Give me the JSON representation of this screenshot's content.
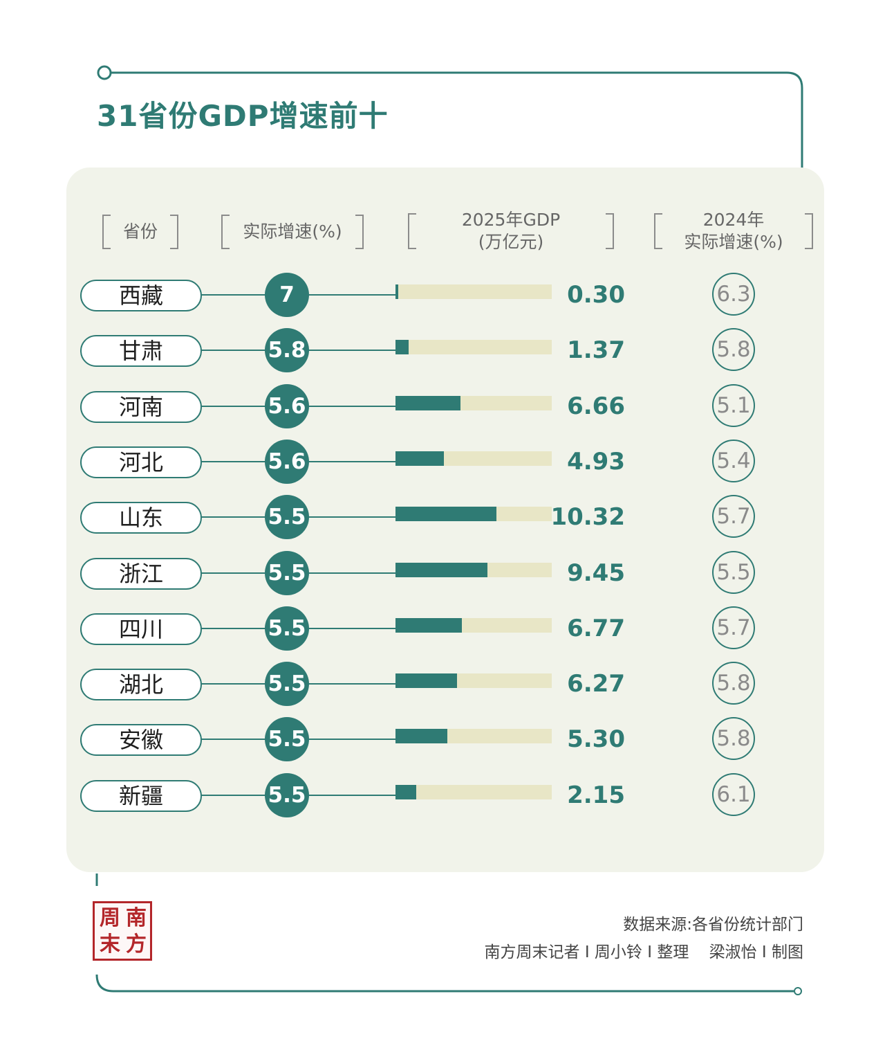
{
  "title": "31省份GDP增速前十",
  "headers": {
    "province": "省份",
    "growth": "实际增速(%)",
    "gdp_line1": "2025年GDP",
    "gdp_line2": "(万亿元)",
    "prev_line1": "2024年",
    "prev_line2": "实际增速(%)"
  },
  "chart_data": {
    "type": "table",
    "columns": [
      "省份",
      "实际增速(%)",
      "2025年GDP(万亿元)",
      "2024年实际增速(%)"
    ],
    "rows": [
      {
        "province": "西藏",
        "growth": "7",
        "gdp": "0.30",
        "prev": "6.3"
      },
      {
        "province": "甘肃",
        "growth": "5.8",
        "gdp": "1.37",
        "prev": "5.8"
      },
      {
        "province": "河南",
        "growth": "5.6",
        "gdp": "6.66",
        "prev": "5.1"
      },
      {
        "province": "河北",
        "growth": "5.6",
        "gdp": "4.93",
        "prev": "5.4"
      },
      {
        "province": "山东",
        "growth": "5.5",
        "gdp": "10.32",
        "prev": "5.7"
      },
      {
        "province": "浙江",
        "growth": "5.5",
        "gdp": "9.45",
        "prev": "5.5"
      },
      {
        "province": "四川",
        "growth": "5.5",
        "gdp": "6.77",
        "prev": "5.7"
      },
      {
        "province": "湖北",
        "growth": "5.5",
        "gdp": "6.27",
        "prev": "5.8"
      },
      {
        "province": "安徽",
        "growth": "5.5",
        "gdp": "5.30",
        "prev": "5.8"
      },
      {
        "province": "新疆",
        "growth": "5.5",
        "gdp": "2.15",
        "prev": "6.1"
      }
    ],
    "bar_max": 16
  },
  "logo": {
    "text": [
      "南",
      "方",
      "周",
      "末"
    ]
  },
  "footer": {
    "source": "数据来源:各省份统计部门",
    "credit": "南方周末记者 I 周小铃 I 整理    梁淑怡 I 制图"
  },
  "colors": {
    "accent": "#2f7b74",
    "track": "#e8e6c6",
    "card": "#f1f3ea",
    "seal": "#b3262a"
  }
}
